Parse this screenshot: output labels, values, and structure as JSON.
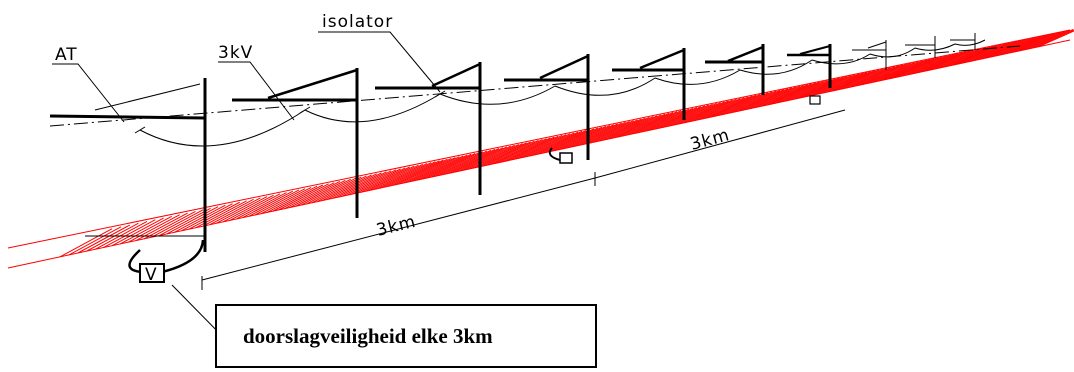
{
  "labels": {
    "at": "AT",
    "kv": "3kV",
    "isolator": "isolator",
    "dist_front": "3km",
    "dist_back": "3km",
    "device_letter": "V"
  },
  "caption": "doorslagveiligheid elke 3km",
  "colors": {
    "line": "#000000",
    "track": "#ff0000",
    "background": "#ffffff"
  }
}
